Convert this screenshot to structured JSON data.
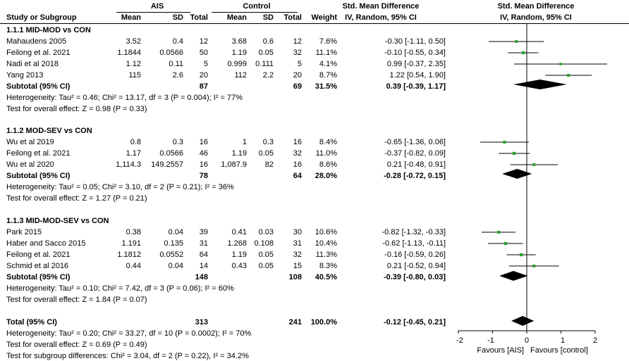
{
  "header": {
    "group1": "AIS",
    "group2": "Control",
    "smd_title": "Std. Mean Difference",
    "smd_method": "IV, Random, 95% CI",
    "plot_title": "Std. Mean Difference",
    "plot_method": "IV, Random, 95% CI",
    "study_col": "Study or Subgroup",
    "mean": "Mean",
    "sd": "SD",
    "total": "Total",
    "weight": "Weight"
  },
  "subgroups": [
    {
      "title": "1.1.1 MID-MOD vs CON",
      "studies": [
        {
          "name": "Mahaudens 2005",
          "m1": "3.52",
          "sd1": "0.4",
          "n1": "12",
          "m2": "3.68",
          "sd2": "0.6",
          "n2": "12",
          "weight": "7.6%",
          "ci": "-0.30 [-1.11, 0.50]"
        },
        {
          "name": "Feilong et al. 2021",
          "m1": "1.1844",
          "sd1": "0.0566",
          "n1": "50",
          "m2": "1.19",
          "sd2": "0.05",
          "n2": "32",
          "weight": "11.1%",
          "ci": "-0.10 [-0.55, 0.34]"
        },
        {
          "name": "Nadi et al 2018",
          "m1": "1.12",
          "sd1": "0.11",
          "n1": "5",
          "m2": "0.999",
          "sd2": "0.111",
          "n2": "5",
          "weight": "4.1%",
          "ci": "0.99 [-0.37, 2.35]"
        },
        {
          "name": "Yang 2013",
          "m1": "115",
          "sd1": "2.6",
          "n1": "20",
          "m2": "112",
          "sd2": "2.2",
          "n2": "20",
          "weight": "8.7%",
          "ci": "1.22 [0.54, 1.90]"
        }
      ],
      "subtotal": {
        "label": "Subtotal (95% CI)",
        "n1": "87",
        "n2": "69",
        "weight": "31.5%",
        "ci": "0.39 [-0.39, 1.17]"
      },
      "heterogeneity": "Heterogeneity: Tau² = 0.46; Chi² = 13.17, df = 3 (P = 0.004); I² = 77%",
      "overall": "Test for overall effect: Z = 0.98 (P = 0.33)"
    },
    {
      "title": "1.1.2 MOD-SEV vs CON",
      "studies": [
        {
          "name": "Wu et al 2019",
          "m1": "0.8",
          "sd1": "0.3",
          "n1": "16",
          "m2": "1",
          "sd2": "0.3",
          "n2": "16",
          "weight": "8.4%",
          "ci": "-0.65 [-1.36, 0.06]"
        },
        {
          "name": "Feilong et al. 2021",
          "m1": "1.17",
          "sd1": "0.0566",
          "n1": "46",
          "m2": "1.19",
          "sd2": "0.05",
          "n2": "32",
          "weight": "11.0%",
          "ci": "-0.37 [-0.82, 0.09]"
        },
        {
          "name": "Wu et al 2020",
          "m1": "1,114.3",
          "sd1": "149.2557",
          "n1": "16",
          "m2": "1,087.9",
          "sd2": "82",
          "n2": "16",
          "weight": "8.6%",
          "ci": "0.21 [-0.48, 0.91]"
        }
      ],
      "subtotal": {
        "label": "Subtotal (95% CI)",
        "n1": "78",
        "n2": "64",
        "weight": "28.0%",
        "ci": "-0.28 [-0.72, 0.15]"
      },
      "heterogeneity": "Heterogeneity: Tau² = 0.05; Chi² = 3.10, df = 2 (P = 0.21); I² = 36%",
      "overall": "Test for overall effect: Z = 1.27 (P = 0.21)"
    },
    {
      "title": "1.1.3 MID-MOD-SEV vs CON",
      "studies": [
        {
          "name": "Park 2015",
          "m1": "0.38",
          "sd1": "0.04",
          "n1": "39",
          "m2": "0.41",
          "sd2": "0.03",
          "n2": "30",
          "weight": "10.6%",
          "ci": "-0.82 [-1.32, -0.33]"
        },
        {
          "name": "Haber and Sacco 2015",
          "m1": "1.191",
          "sd1": "0.135",
          "n1": "31",
          "m2": "1.268",
          "sd2": "0.108",
          "n2": "31",
          "weight": "10.4%",
          "ci": "-0.62 [-1.13, -0.11]"
        },
        {
          "name": "Feilong et al. 2021",
          "m1": "1.1812",
          "sd1": "0.0552",
          "n1": "64",
          "m2": "1.19",
          "sd2": "0.05",
          "n2": "32",
          "weight": "11.3%",
          "ci": "-0.16 [-0.59, 0.26]"
        },
        {
          "name": "Schmid et al 2016",
          "m1": "0.44",
          "sd1": "0.04",
          "n1": "14",
          "m2": "0.43",
          "sd2": "0.05",
          "n2": "15",
          "weight": "8.3%",
          "ci": "0.21 [-0.52, 0.94]"
        }
      ],
      "subtotal": {
        "label": "Subtotal (95% CI)",
        "n1": "148",
        "n2": "108",
        "weight": "40.5%",
        "ci": "-0.39 [-0.80, 0.03]"
      },
      "heterogeneity": "Heterogeneity: Tau² = 0.10; Chi² = 7.42, df = 3 (P = 0.06); I² = 60%",
      "overall": "Test for overall effect: Z = 1.84 (P = 0.07)"
    }
  ],
  "total": {
    "label": "Total (95% CI)",
    "n1": "313",
    "n2": "241",
    "weight": "100.0%",
    "ci": "-0.12 [-0.45, 0.21]",
    "heterogeneity": "Heterogeneity: Tau² = 0.20; Chi² = 33.27, df = 10 (P = 0.0002); I² = 70%",
    "overall": "Test for overall effect: Z = 0.69 (P = 0.49)",
    "subgroup_diff": "Test for subgroup differences: Chi² = 3.04, df = 2 (P = 0.22), I² = 34.2%"
  },
  "axis_labels": {
    "left": "Favours [AIS]",
    "right": "Favours [control]"
  },
  "colors": {
    "point": "#2ca02c",
    "diamond": "#000000",
    "line": "#000000"
  },
  "chart_data": {
    "type": "forest",
    "xlim": [
      -2,
      2
    ],
    "xticks": [
      -2,
      -1,
      0,
      1,
      2
    ],
    "null_line": 0,
    "studies": [
      {
        "name": "Mahaudens 2005",
        "smd": -0.3,
        "lo": -1.11,
        "hi": 0.5,
        "weight": 7.6
      },
      {
        "name": "Feilong et al. 2021",
        "smd": -0.1,
        "lo": -0.55,
        "hi": 0.34,
        "weight": 11.1
      },
      {
        "name": "Nadi et al 2018",
        "smd": 0.99,
        "lo": -0.37,
        "hi": 2.35,
        "weight": 4.1
      },
      {
        "name": "Yang 2013",
        "smd": 1.22,
        "lo": 0.54,
        "hi": 1.9,
        "weight": 8.7
      },
      {
        "name": "Wu et al 2019",
        "smd": -0.65,
        "lo": -1.36,
        "hi": 0.06,
        "weight": 8.4
      },
      {
        "name": "Feilong et al. 2021",
        "smd": -0.37,
        "lo": -0.82,
        "hi": 0.09,
        "weight": 11.0
      },
      {
        "name": "Wu et al 2020",
        "smd": 0.21,
        "lo": -0.48,
        "hi": 0.91,
        "weight": 8.6
      },
      {
        "name": "Park 2015",
        "smd": -0.82,
        "lo": -1.32,
        "hi": -0.33,
        "weight": 10.6
      },
      {
        "name": "Haber and Sacco 2015",
        "smd": -0.62,
        "lo": -1.13,
        "hi": -0.11,
        "weight": 10.4
      },
      {
        "name": "Feilong et al. 2021",
        "smd": -0.16,
        "lo": -0.59,
        "hi": 0.26,
        "weight": 11.3
      },
      {
        "name": "Schmid et al 2016",
        "smd": 0.21,
        "lo": -0.52,
        "hi": 0.94,
        "weight": 8.3
      }
    ],
    "pooled": [
      {
        "name": "Subtotal 1.1.1",
        "smd": 0.39,
        "lo": -0.39,
        "hi": 1.17
      },
      {
        "name": "Subtotal 1.1.2",
        "smd": -0.28,
        "lo": -0.72,
        "hi": 0.15
      },
      {
        "name": "Subtotal 1.1.3",
        "smd": -0.39,
        "lo": -0.8,
        "hi": 0.03
      },
      {
        "name": "Total",
        "smd": -0.12,
        "lo": -0.45,
        "hi": 0.21
      }
    ]
  }
}
